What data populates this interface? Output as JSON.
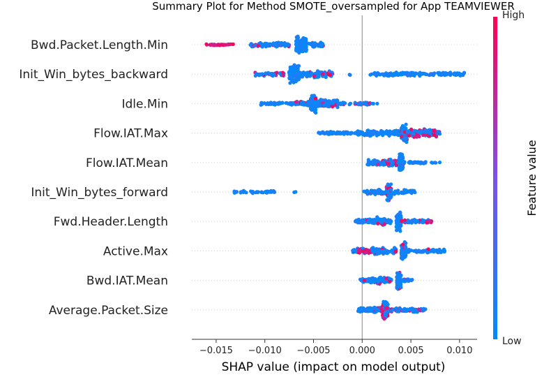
{
  "chart_data": {
    "type": "scatter",
    "title": "Summary Plot for Method SMOTE_oversampled for App TEAMVIEWER",
    "xlabel": "SHAP value (impact on model output)",
    "xlim": [
      -0.0175,
      0.0118
    ],
    "xticks": [
      "−0.015",
      "−0.010",
      "−0.005",
      "0.000",
      "0.005",
      "0.010"
    ],
    "xtick_values": [
      -0.015,
      -0.01,
      -0.005,
      0.0,
      0.005,
      0.01
    ],
    "colorbar": {
      "title": "Feature value",
      "high_label": "High",
      "low_label": "Low",
      "high_color": "#ff0052",
      "low_color": "#008bfb"
    },
    "features": [
      {
        "name": "Bwd.Packet.Length.Min",
        "clusters": [
          [
            -0.0163,
            -0.0132,
            0.08,
            40,
            0.95
          ],
          [
            -0.0115,
            -0.0075,
            0.25,
            90,
            0.2
          ],
          [
            -0.0068,
            -0.0057,
            0.9,
            120,
            0.0
          ],
          [
            -0.0055,
            -0.004,
            0.3,
            40,
            0.05
          ]
        ]
      },
      {
        "name": "Init_Win_bytes_backward",
        "clusters": [
          [
            -0.011,
            -0.008,
            0.2,
            50,
            0.3
          ],
          [
            -0.0075,
            -0.0065,
            1.0,
            120,
            0.05
          ],
          [
            -0.0065,
            -0.003,
            0.4,
            80,
            0.25
          ],
          [
            -0.0015,
            -0.0012,
            0.1,
            2,
            0.0
          ],
          [
            0.0008,
            0.0105,
            0.2,
            160,
            0.0
          ]
        ]
      },
      {
        "name": "Idle.Min",
        "clusters": [
          [
            -0.0105,
            -0.007,
            0.15,
            60,
            0.05
          ],
          [
            -0.007,
            -0.004,
            0.25,
            70,
            0.2
          ],
          [
            -0.0053,
            -0.0047,
            1.0,
            110,
            0.03
          ],
          [
            -0.0046,
            -0.0025,
            0.5,
            80,
            0.15
          ],
          [
            -0.0025,
            0.001,
            0.15,
            40,
            0.1
          ],
          [
            0.001,
            0.002,
            0.05,
            3,
            0.0
          ]
        ]
      },
      {
        "name": "Flow.IAT.Max",
        "clusters": [
          [
            -0.0045,
            -0.0005,
            0.15,
            70,
            0.02
          ],
          [
            -0.0005,
            0.004,
            0.3,
            120,
            0.02
          ],
          [
            0.004,
            0.0046,
            1.0,
            90,
            0.1
          ],
          [
            0.0046,
            0.008,
            0.45,
            120,
            0.4
          ]
        ]
      },
      {
        "name": "Flow.IAT.Mean",
        "clusters": [
          [
            0.0005,
            0.004,
            0.3,
            110,
            0.05
          ],
          [
            0.002,
            0.0042,
            0.4,
            60,
            0.35
          ],
          [
            0.0038,
            0.0042,
            1.0,
            80,
            0.03
          ],
          [
            0.0042,
            0.008,
            0.15,
            40,
            0.02
          ]
        ]
      },
      {
        "name": "Init_Win_bytes_forward",
        "clusters": [
          [
            -0.0132,
            -0.009,
            0.15,
            45,
            0.02
          ],
          [
            -0.007,
            -0.0068,
            0.05,
            2,
            0.0
          ],
          [
            0.0002,
            0.0025,
            0.3,
            60,
            0.05
          ],
          [
            0.0025,
            0.003,
            1.0,
            80,
            0.3
          ],
          [
            0.003,
            0.0055,
            0.25,
            40,
            0.03
          ]
        ]
      },
      {
        "name": "Fwd.Header.Length",
        "clusters": [
          [
            -0.0007,
            0.003,
            0.25,
            110,
            0.03
          ],
          [
            0.0012,
            0.0025,
            0.5,
            40,
            0.2
          ],
          [
            0.0035,
            0.004,
            1.0,
            80,
            0.03
          ],
          [
            0.004,
            0.0072,
            0.2,
            70,
            0.15
          ],
          [
            0.0065,
            0.0073,
            0.2,
            10,
            0.9
          ]
        ]
      },
      {
        "name": "Active.Max",
        "clusters": [
          [
            -0.001,
            0.002,
            0.2,
            60,
            0.05
          ],
          [
            -0.0005,
            0.001,
            0.35,
            30,
            0.8
          ],
          [
            0.001,
            0.0035,
            0.4,
            90,
            0.1
          ],
          [
            0.004,
            0.0045,
            1.0,
            70,
            0.03
          ],
          [
            0.0045,
            0.0085,
            0.2,
            70,
            0.03
          ]
        ]
      },
      {
        "name": "Bwd.IAT.Mean",
        "clusters": [
          [
            -0.0002,
            0.003,
            0.25,
            100,
            0.03
          ],
          [
            0.0012,
            0.0028,
            0.4,
            40,
            0.15
          ],
          [
            0.0035,
            0.004,
            1.0,
            70,
            0.03
          ],
          [
            0.004,
            0.0052,
            0.15,
            30,
            0.02
          ]
        ]
      },
      {
        "name": "Average.Packet.Size",
        "clusters": [
          [
            -0.0005,
            0.0025,
            0.25,
            100,
            0.05
          ],
          [
            0.0021,
            0.0027,
            1.0,
            90,
            0.45
          ],
          [
            0.0025,
            0.0065,
            0.25,
            70,
            0.15
          ],
          [
            0.001,
            0.0021,
            0.3,
            30,
            0.3
          ]
        ]
      }
    ]
  }
}
